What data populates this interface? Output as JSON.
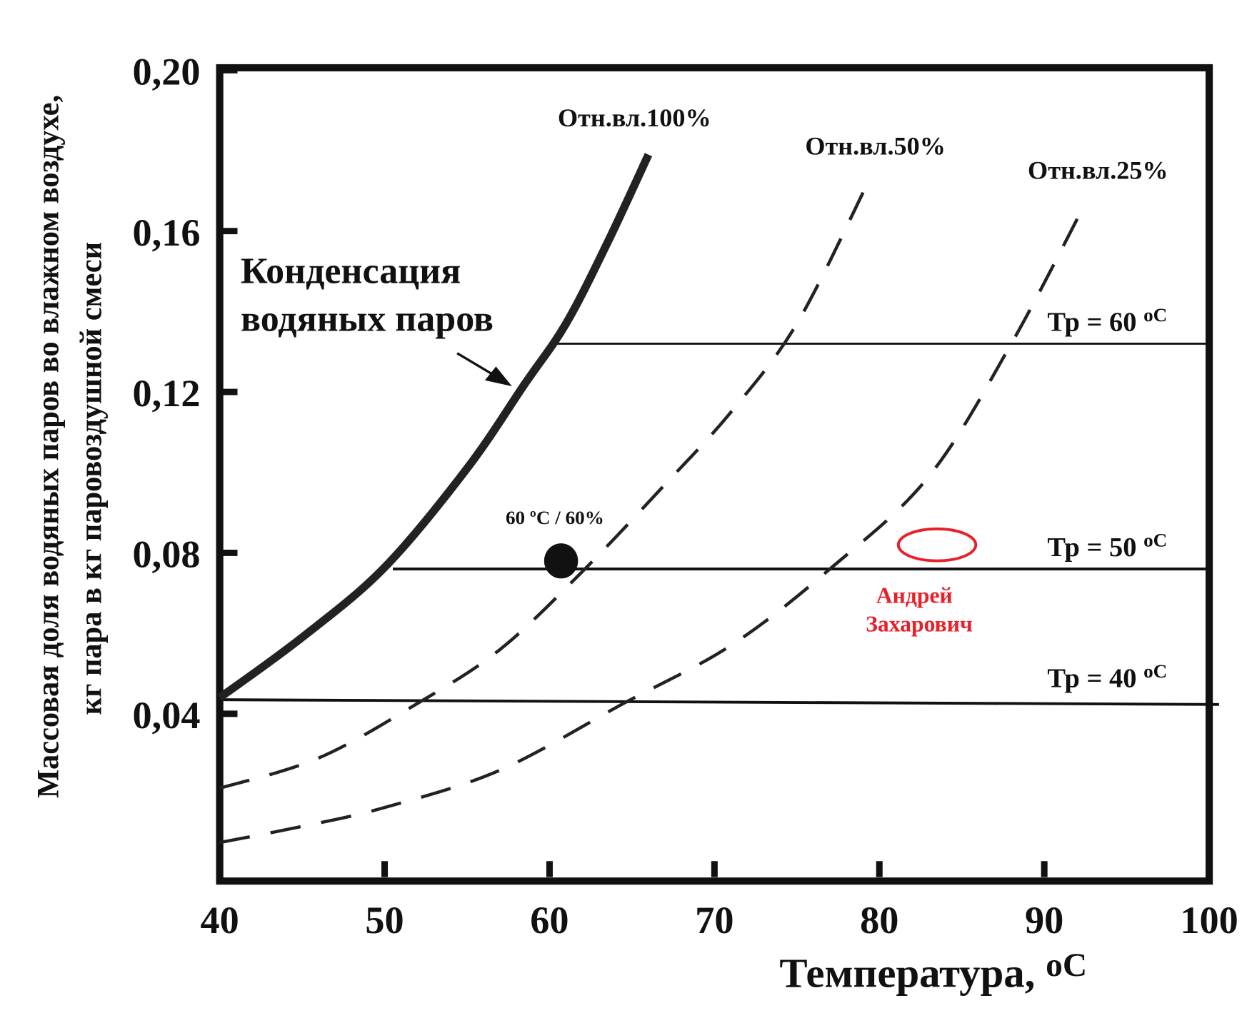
{
  "chart_data": {
    "type": "line",
    "title": "",
    "xlabel": "Температура, ",
    "xlabel_unit": "oC",
    "ylabel_line1": "Массовая доля водяных паров во влажном воздухе,",
    "ylabel_line2": "кг пара в кг паровоздушной смеси",
    "xlim": [
      40,
      100
    ],
    "ylim": [
      0,
      0.2
    ],
    "grid": false,
    "x_ticks": [
      40,
      50,
      60,
      70,
      80,
      90,
      100
    ],
    "x_tick_labels": [
      "40",
      "50",
      "60",
      "70",
      "80",
      "90",
      "100"
    ],
    "y_ticks": [
      0.04,
      0.08,
      0.12,
      0.16,
      0.2
    ],
    "y_tick_labels": [
      "0,04",
      "0,08",
      "0,12",
      "0,16",
      "0,20"
    ],
    "series": [
      {
        "name": "Отн.вл.100%",
        "style": "solid",
        "label_at": [
          60.5,
          0.186
        ],
        "x": [
          40,
          45,
          50,
          55,
          58.5,
          61,
          63.5,
          66
        ],
        "y": [
          0.044,
          0.059,
          0.0764,
          0.101,
          0.122,
          0.137,
          0.157,
          0.179
        ]
      },
      {
        "name": "Отн.вл.50%",
        "style": "dashed",
        "label_at": [
          75.5,
          0.179
        ],
        "x": [
          40,
          46,
          52,
          57,
          62,
          67,
          71,
          75,
          79.3
        ],
        "y": [
          0.0215,
          0.029,
          0.0426,
          0.056,
          0.0754,
          0.097,
          0.115,
          0.137,
          0.172
        ]
      },
      {
        "name": "Отн.вл.25%",
        "style": "dashed",
        "label_at": [
          89,
          0.173
        ],
        "x": [
          40,
          45,
          50,
          57,
          64.5,
          71,
          77,
          83,
          88,
          92.5
        ],
        "y": [
          0.008,
          0.012,
          0.0167,
          0.026,
          0.0426,
          0.057,
          0.076,
          0.099,
          0.132,
          0.167
        ]
      }
    ],
    "dew_point_lines": [
      {
        "label": "Тр = 60",
        "unit": "oC",
        "y": 0.132,
        "x_start": 60.2,
        "x_end": 100
      },
      {
        "label": "Тр = 50",
        "unit": "oC",
        "y": 0.076,
        "x_start": 50.5,
        "x_end": 100
      },
      {
        "label": "Тр = 40",
        "unit": "oC",
        "y": 0.0435,
        "x_start": 40,
        "x_end": 100.6
      }
    ],
    "annotations": {
      "condensation_line1": "Конденсация",
      "condensation_line2": "водяных паров",
      "point_label": "60 ºC / 60%",
      "point": [
        60.7,
        0.078
      ],
      "author_line1": "Андрей",
      "author_line2": "Захарович",
      "author_marker": [
        83.5,
        0.082
      ]
    },
    "colors": {
      "ink": "#111111",
      "author": "#e8202a"
    }
  }
}
